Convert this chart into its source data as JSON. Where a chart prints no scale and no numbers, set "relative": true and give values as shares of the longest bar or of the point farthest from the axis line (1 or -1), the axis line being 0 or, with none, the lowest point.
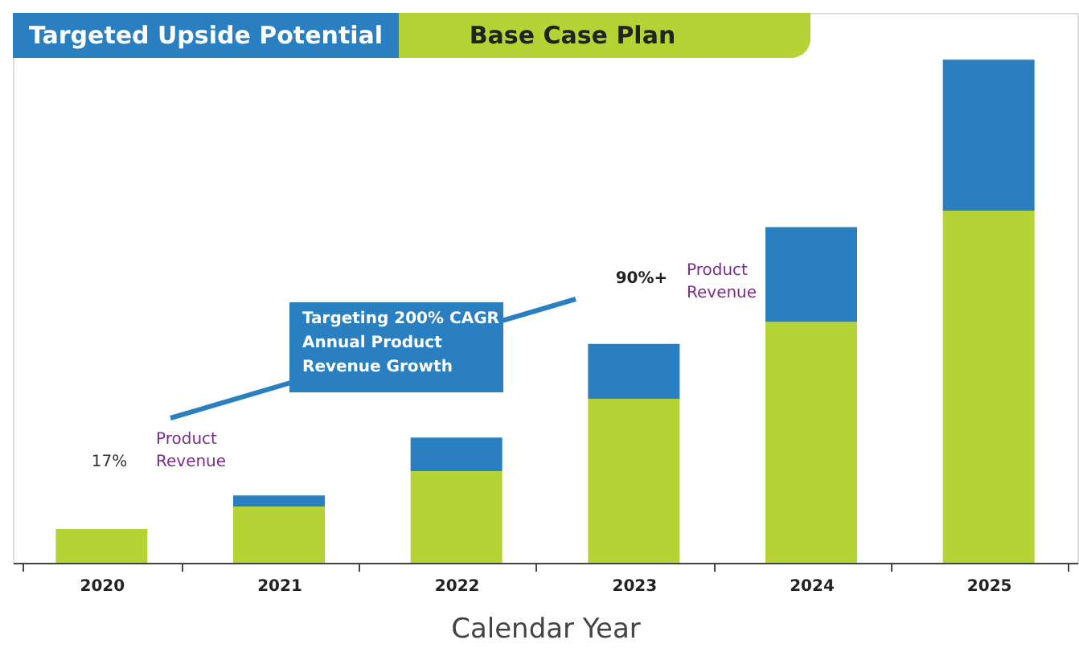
{
  "chart_data": {
    "type": "bar",
    "stacked": true,
    "relative": true,
    "xlabel": "Calendar Year",
    "legend": "top left",
    "categories": [
      "2020",
      "2021",
      "2022",
      "2023",
      "2024",
      "2025"
    ],
    "series": [
      {
        "name": "Base Case Plan",
        "color": "#b5d334",
        "values": [
          0.067,
          0.112,
          0.182,
          0.326,
          0.479,
          0.7
        ]
      },
      {
        "name": "Targeted Upside Potential",
        "color": "#2a7fc1",
        "values": [
          null,
          0.022,
          0.067,
          0.109,
          0.188,
          0.3
        ]
      }
    ],
    "annotations": [
      "17%",
      "Product Revenue",
      "90%+",
      "Product Revenue",
      "Targeting 200% CAGR Annual Product Revenue Growth"
    ]
  }
}
